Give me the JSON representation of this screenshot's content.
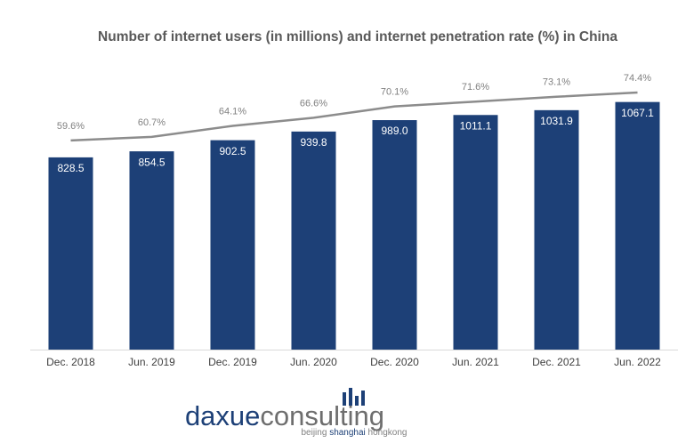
{
  "chart_data": {
    "type": "bar+line",
    "title": "Number of internet users (in millions) and internet penetration rate (%) in China",
    "categories": [
      "Dec. 2018",
      "Jun. 2019",
      "Dec. 2019",
      "Jun. 2020",
      "Dec. 2020",
      "Jun. 2021",
      "Dec. 2021",
      "Jun. 2022"
    ],
    "series": [
      {
        "type": "bar",
        "color": "#1d4077",
        "values": [
          828.5,
          854.5,
          902.5,
          939.8,
          989.0,
          1011.1,
          1031.9,
          1067.1
        ],
        "value_labels": [
          "828.5",
          "854.5",
          "902.5",
          "939.8",
          "989.0",
          "1011.1",
          "1031.9",
          "1067.1"
        ]
      },
      {
        "type": "line",
        "axis": "y2",
        "color": "#8c8c8c",
        "values": [
          59.6,
          60.7,
          64.1,
          66.6,
          70.1,
          71.6,
          73.1,
          74.4
        ],
        "value_labels": [
          "59.6%",
          "60.7%",
          "64.1%",
          "66.6%",
          "70.1%",
          "71.6%",
          "73.1%",
          "74.4%"
        ]
      }
    ],
    "ylim": [
      0,
      1200
    ],
    "y2lim": [
      -5,
      81
    ]
  },
  "logo": {
    "name_a": "daxue",
    "name_b": "consulting",
    "tagline_a": "beijing ",
    "tagline_b": "shanghai",
    "tagline_c": " hongkong"
  }
}
